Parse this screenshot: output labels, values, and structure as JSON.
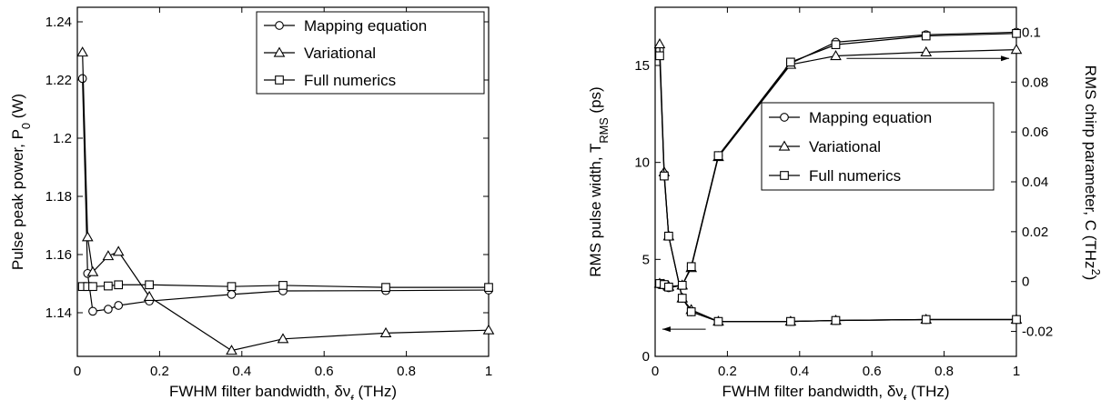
{
  "chart_data": [
    {
      "type": "line",
      "xlabel": "FWHM filter bandwidth, δν_f  (THz)",
      "ylabel": "Pulse peak power, P_0  (W)",
      "xlim": [
        0,
        1
      ],
      "ylim": [
        1.125,
        1.245
      ],
      "xticks": [
        0,
        0.2,
        0.4,
        0.6,
        0.8,
        1
      ],
      "xtick_labels": [
        "0",
        "0.2",
        "0.4",
        "0.6",
        "0.8",
        "1"
      ],
      "yticks": [
        1.14,
        1.16,
        1.18,
        1.2,
        1.22,
        1.24
      ],
      "ytick_labels": [
        "1.14",
        "1.16",
        "1.18",
        "1.2",
        "1.22",
        "1.24"
      ],
      "grid": false,
      "legend_position": "top-right",
      "series": [
        {
          "name": "Mapping equation",
          "marker": "circle",
          "x": [
            0.0125,
            0.025,
            0.0375,
            0.075,
            0.1,
            0.175,
            0.375,
            0.5,
            0.75,
            1.0
          ],
          "y": [
            1.2205,
            1.1535,
            1.1405,
            1.1412,
            1.1425,
            1.144,
            1.1463,
            1.1475,
            1.1476,
            1.1478
          ]
        },
        {
          "name": "Variational",
          "marker": "triangle",
          "x": [
            0.0125,
            0.025,
            0.0375,
            0.075,
            0.1,
            0.175,
            0.375,
            0.5,
            0.75,
            1.0
          ],
          "y": [
            1.2295,
            1.166,
            1.154,
            1.1595,
            1.161,
            1.1455,
            1.127,
            1.131,
            1.133,
            1.134
          ]
        },
        {
          "name": "Full numerics",
          "marker": "square",
          "x": [
            0.0125,
            0.025,
            0.0375,
            0.075,
            0.1,
            0.175,
            0.375,
            0.5,
            0.75,
            1.0
          ],
          "y": [
            1.149,
            1.149,
            1.149,
            1.1492,
            1.1496,
            1.1496,
            1.149,
            1.1494,
            1.1487,
            1.1487
          ]
        }
      ]
    },
    {
      "type": "line",
      "xlabel": "FWHM filter bandwidth, δν_f  (THz)",
      "ylabel": "RMS pulse width, T_RMS  (ps)",
      "ylabel_right": "RMS chirp parameter, C  (THz^2)",
      "xlim": [
        0,
        1
      ],
      "ylim": [
        0,
        18
      ],
      "ylim_right": [
        -0.03,
        0.11
      ],
      "xticks": [
        0,
        0.2,
        0.4,
        0.6,
        0.8,
        1
      ],
      "xtick_labels": [
        "0",
        "0.2",
        "0.4",
        "0.6",
        "0.8",
        "1"
      ],
      "yticks": [
        0,
        5,
        10,
        15
      ],
      "ytick_labels": [
        "0",
        "5",
        "10",
        "15"
      ],
      "yticks_right": [
        -0.02,
        0,
        0.02,
        0.04,
        0.06,
        0.08,
        0.1
      ],
      "ytick_labels_right": [
        "-0.02",
        "0",
        "0.02",
        "0.04",
        "0.06",
        "0.08",
        "0.1"
      ],
      "grid": false,
      "legend_position": "center-right",
      "series": [
        {
          "name": "Mapping equation",
          "marker": "circle",
          "axis": "left",
          "x": [
            0.0125,
            0.025,
            0.0375,
            0.075,
            0.1,
            0.175,
            0.375,
            0.5,
            0.75,
            1.0
          ],
          "y": [
            15.8,
            9.4,
            6.2,
            3.0,
            2.3,
            1.8,
            1.8,
            1.85,
            1.9,
            1.9
          ]
        },
        {
          "name": "Variational",
          "marker": "triangle",
          "axis": "left",
          "x": [
            0.0125,
            0.025,
            0.0375,
            0.075,
            0.1,
            0.175,
            0.375,
            0.5,
            0.75,
            1.0
          ],
          "y": [
            16.1,
            9.5,
            6.2,
            3.0,
            2.4,
            1.8,
            1.8,
            1.85,
            1.9,
            1.9
          ]
        },
        {
          "name": "Full numerics",
          "marker": "square",
          "axis": "left",
          "x": [
            0.0125,
            0.025,
            0.0375,
            0.075,
            0.1,
            0.175,
            0.375,
            0.5,
            0.75,
            1.0
          ],
          "y": [
            15.5,
            9.3,
            6.2,
            3.0,
            2.3,
            1.8,
            1.8,
            1.85,
            1.9,
            1.9
          ]
        },
        {
          "marker": "circle",
          "axis": "right",
          "x": [
            0.0125,
            0.025,
            0.0375,
            0.075,
            0.1,
            0.175,
            0.375,
            0.5,
            0.75,
            1.0
          ],
          "y": [
            -0.0012,
            -0.0015,
            -0.0025,
            -0.0015,
            0.006,
            0.0505,
            0.0875,
            0.096,
            0.099,
            0.1
          ]
        },
        {
          "marker": "triangle",
          "axis": "right",
          "x": [
            0.0125,
            0.025,
            0.0375,
            0.075,
            0.1,
            0.175,
            0.375,
            0.5,
            0.75,
            1.0
          ],
          "y": [
            -0.0008,
            -0.0012,
            -0.002,
            -0.0015,
            0.0055,
            0.05,
            0.087,
            0.0905,
            0.092,
            0.093
          ]
        },
        {
          "marker": "square",
          "axis": "right",
          "x": [
            0.0125,
            0.025,
            0.0375,
            0.075,
            0.1,
            0.175,
            0.375,
            0.5,
            0.75,
            1.0
          ],
          "y": [
            -0.0008,
            -0.0012,
            -0.0022,
            -0.0015,
            0.006,
            0.0505,
            0.088,
            0.095,
            0.0985,
            0.0995
          ]
        }
      ],
      "annotations": [
        {
          "type": "arrow",
          "direction": "left",
          "refers_to": "left axis",
          "from_x": 0.14,
          "to_x": 0.02,
          "y": 1.4
        },
        {
          "type": "arrow",
          "direction": "right",
          "refers_to": "right axis",
          "from_x": 0.53,
          "to_x": 0.98,
          "y": 0.0895
        }
      ]
    }
  ],
  "colors": {
    "ink": "#000000",
    "background": "#ffffff"
  }
}
